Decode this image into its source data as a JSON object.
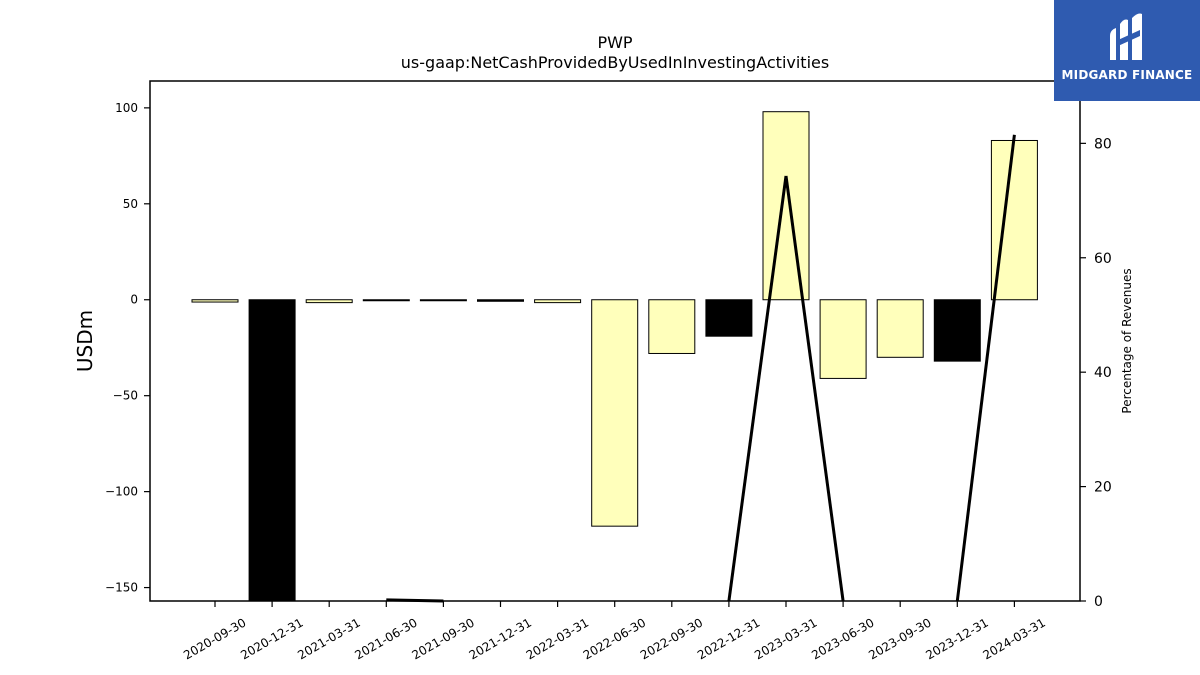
{
  "brand": {
    "name": "MIDGARD FINANCE",
    "color": "#2f5bb0"
  },
  "chart_data": {
    "type": "bar",
    "title": "PWP",
    "subtitle": "us-gaap:NetCashProvidedByUsedInInvestingActivities",
    "ylabel": "USDm",
    "y2label": "Percentage of Revenues",
    "ylim": [
      -157,
      114
    ],
    "y2lim": [
      0,
      90.9
    ],
    "yticks": [
      100,
      50,
      0,
      -50,
      -100,
      -150
    ],
    "y2ticks": [
      80,
      60,
      40,
      20,
      0
    ],
    "categories": [
      "2020-09-30",
      "2020-12-31",
      "2021-03-31",
      "2021-06-30",
      "2021-09-30",
      "2021-12-31",
      "2022-03-31",
      "2022-06-30",
      "2022-09-30",
      "2022-12-31",
      "2023-03-31",
      "2023-06-30",
      "2023-09-30",
      "2023-12-31",
      "2024-03-31"
    ],
    "values": [
      -1.2,
      -157,
      -1.5,
      -0.3,
      -0.3,
      -0.8,
      -1.5,
      -118,
      -28,
      -19,
      98,
      -41,
      -30,
      -32,
      83
    ],
    "bar_colors": [
      "#ffffbb",
      "#000000",
      "#ffffbb",
      "#ffffbb",
      "#ffffbb",
      "#000000",
      "#ffffbb",
      "#ffffbb",
      "#ffffbb",
      "#000000",
      "#ffffbb",
      "#ffffbb",
      "#ffffbb",
      "#000000",
      "#ffffbb"
    ],
    "line_series": {
      "axis": "right",
      "values": [
        null,
        null,
        null,
        0.2,
        0,
        null,
        null,
        null,
        null,
        0,
        74.3,
        0,
        null,
        0,
        81.5
      ],
      "color": "#000000"
    },
    "grid": false
  }
}
